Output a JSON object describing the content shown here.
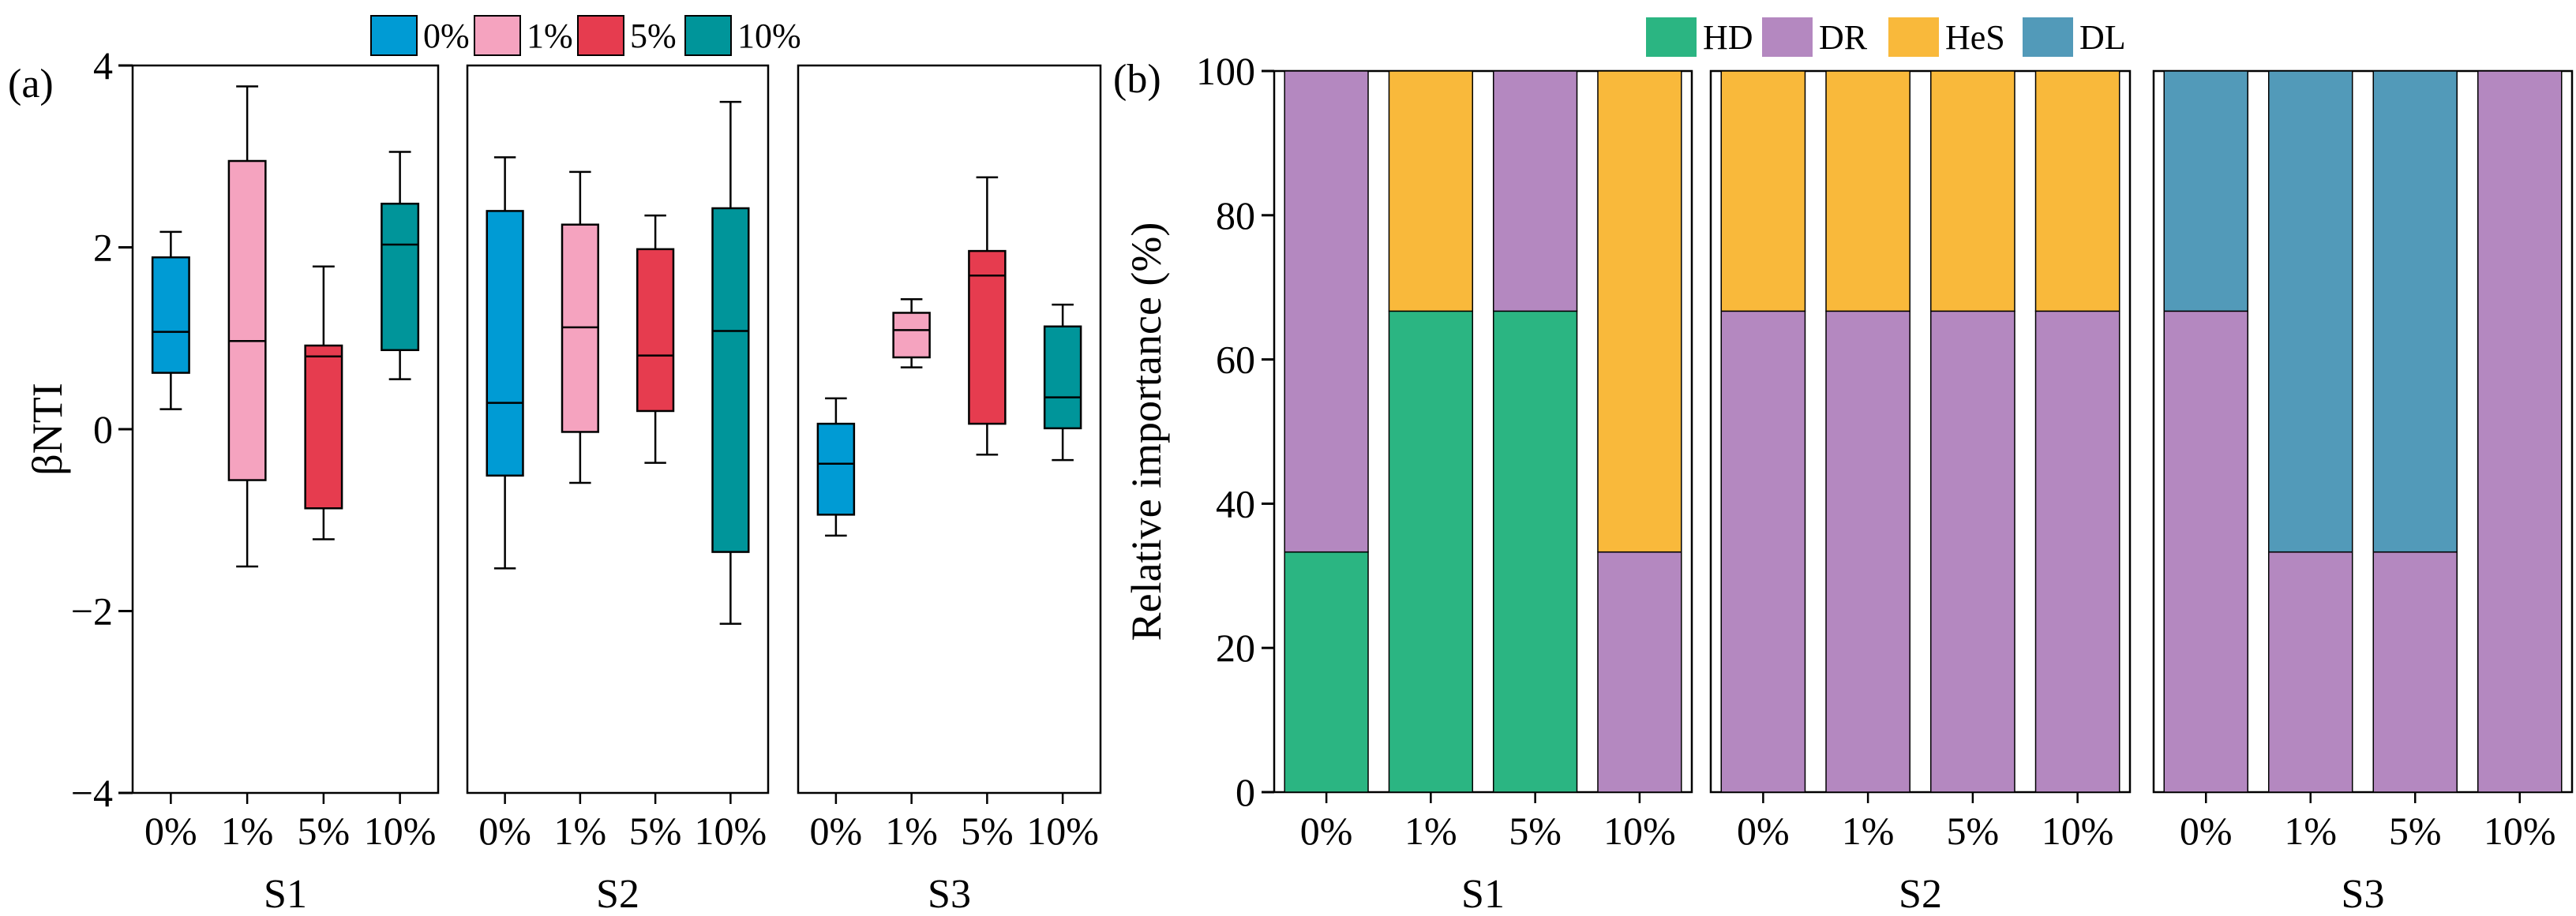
{
  "chart_data": [
    {
      "type": "box",
      "panel_label": "(a)",
      "ylabel": "βNTI",
      "ylim": [
        -4,
        4
      ],
      "yticks": [
        "4",
        "2",
        "0",
        "−2",
        "−4"
      ],
      "ytick_values": [
        4,
        2,
        0,
        -2,
        -4
      ],
      "groups": [
        "S1",
        "S2",
        "S3"
      ],
      "categories": [
        "0%",
        "1%",
        "5%",
        "10%"
      ],
      "legend": [
        {
          "label": "0%",
          "color": "#009bd4"
        },
        {
          "label": "1%",
          "color": "#f5a3bf"
        },
        {
          "label": "5%",
          "color": "#e63c4f"
        },
        {
          "label": "10%",
          "color": "#00959a"
        }
      ],
      "boxes": [
        [
          {
            "min": 0.22,
            "q1": 0.62,
            "median": 1.07,
            "q3": 1.89,
            "max": 2.17
          },
          {
            "min": -1.51,
            "q1": -0.56,
            "median": 0.97,
            "q3": 2.95,
            "max": 3.77
          },
          {
            "min": -1.21,
            "q1": -0.87,
            "median": 0.8,
            "q3": 0.92,
            "max": 1.79
          },
          {
            "min": 0.55,
            "q1": 0.87,
            "median": 2.03,
            "q3": 2.48,
            "max": 3.05
          }
        ],
        [
          {
            "min": -1.53,
            "q1": -0.51,
            "median": 0.29,
            "q3": 2.4,
            "max": 2.99
          },
          {
            "min": -0.59,
            "q1": -0.03,
            "median": 1.12,
            "q3": 2.25,
            "max": 2.83
          },
          {
            "min": -0.37,
            "q1": 0.2,
            "median": 0.81,
            "q3": 1.98,
            "max": 2.35
          },
          {
            "min": -2.14,
            "q1": -1.35,
            "median": 1.08,
            "q3": 2.43,
            "max": 3.6
          }
        ],
        [
          {
            "min": -1.17,
            "q1": -0.94,
            "median": -0.38,
            "q3": 0.06,
            "max": 0.34
          },
          {
            "min": 0.68,
            "q1": 0.79,
            "median": 1.09,
            "q3": 1.28,
            "max": 1.43
          },
          {
            "min": -0.28,
            "q1": 0.06,
            "median": 1.69,
            "q3": 1.96,
            "max": 2.77
          },
          {
            "min": -0.34,
            "q1": 0.01,
            "median": 0.35,
            "q3": 1.13,
            "max": 1.37
          }
        ]
      ]
    },
    {
      "type": "stacked_bar",
      "panel_label": "(b)",
      "ylabel": "Relative importance (%)",
      "ylim": [
        0,
        100
      ],
      "yticks": [
        "100",
        "80",
        "60",
        "40",
        "20",
        "0"
      ],
      "ytick_values": [
        100,
        80,
        60,
        40,
        20,
        0
      ],
      "groups": [
        "S1",
        "S2",
        "S3"
      ],
      "categories": [
        "0%",
        "1%",
        "5%",
        "10%"
      ],
      "legend": [
        {
          "label": "HD",
          "color": "#2bb582"
        },
        {
          "label": "DR",
          "color": "#b488c0"
        },
        {
          "label": "HeS",
          "color": "#f9b93b"
        },
        {
          "label": "DL",
          "color": "#529ab9"
        }
      ],
      "bars": [
        [
          {
            "HD": 33.3,
            "DR": 66.7,
            "HeS": 0,
            "DL": 0
          },
          {
            "HD": 66.7,
            "DR": 0,
            "HeS": 33.3,
            "DL": 0
          },
          {
            "HD": 66.7,
            "DR": 33.3,
            "HeS": 0,
            "DL": 0
          },
          {
            "HD": 0,
            "DR": 33.3,
            "HeS": 66.7,
            "DL": 0
          }
        ],
        [
          {
            "HD": 0,
            "DR": 66.7,
            "HeS": 33.3,
            "DL": 0
          },
          {
            "HD": 0,
            "DR": 66.7,
            "HeS": 33.3,
            "DL": 0
          },
          {
            "HD": 0,
            "DR": 66.7,
            "HeS": 33.3,
            "DL": 0
          },
          {
            "HD": 0,
            "DR": 66.7,
            "HeS": 33.3,
            "DL": 0
          }
        ],
        [
          {
            "HD": 0,
            "DR": 66.7,
            "HeS": 0,
            "DL": 33.3
          },
          {
            "HD": 0,
            "DR": 33.3,
            "HeS": 0,
            "DL": 66.7
          },
          {
            "HD": 0,
            "DR": 33.3,
            "HeS": 0,
            "DL": 66.7
          },
          {
            "HD": 0,
            "DR": 100,
            "HeS": 0,
            "DL": 0
          }
        ]
      ]
    }
  ]
}
